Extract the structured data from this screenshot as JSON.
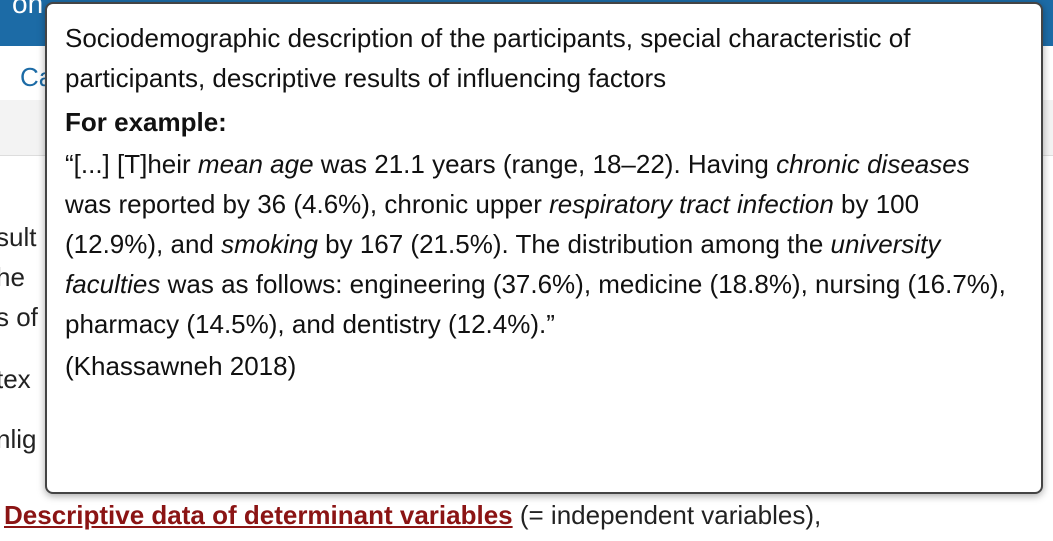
{
  "header": {
    "title_fragment": "on"
  },
  "tab": {
    "label": "Ca"
  },
  "body_fragments": [
    "sult",
    "he",
    "s of",
    "tex",
    "nlig"
  ],
  "last_line": {
    "link": "Descriptive data of determinant variables",
    "rest": " (= independent variables),"
  },
  "tooltip": {
    "description": "Sociodemographic description of the participants, special characteristic of participants, descriptive results of influencing factors",
    "heading": "For example:",
    "quote": [
      "“[...] [T]heir ",
      "mean age",
      " was 21.1 years (range, 18–22). Having ",
      "chronic diseases",
      " was reported by 36 (4.6%), chronic upper ",
      "respiratory tract infection",
      " by 100 (12.9%), and ",
      "smoking",
      " by 167 (21.5%). The distribution among the ",
      "university faculties",
      " was as follows: engineering (37.6%), medicine (18.8%), nursing (16.7%), pharmacy (14.5%), and dentistry (12.4%).”"
    ],
    "source": "(Khassawneh 2018)"
  }
}
